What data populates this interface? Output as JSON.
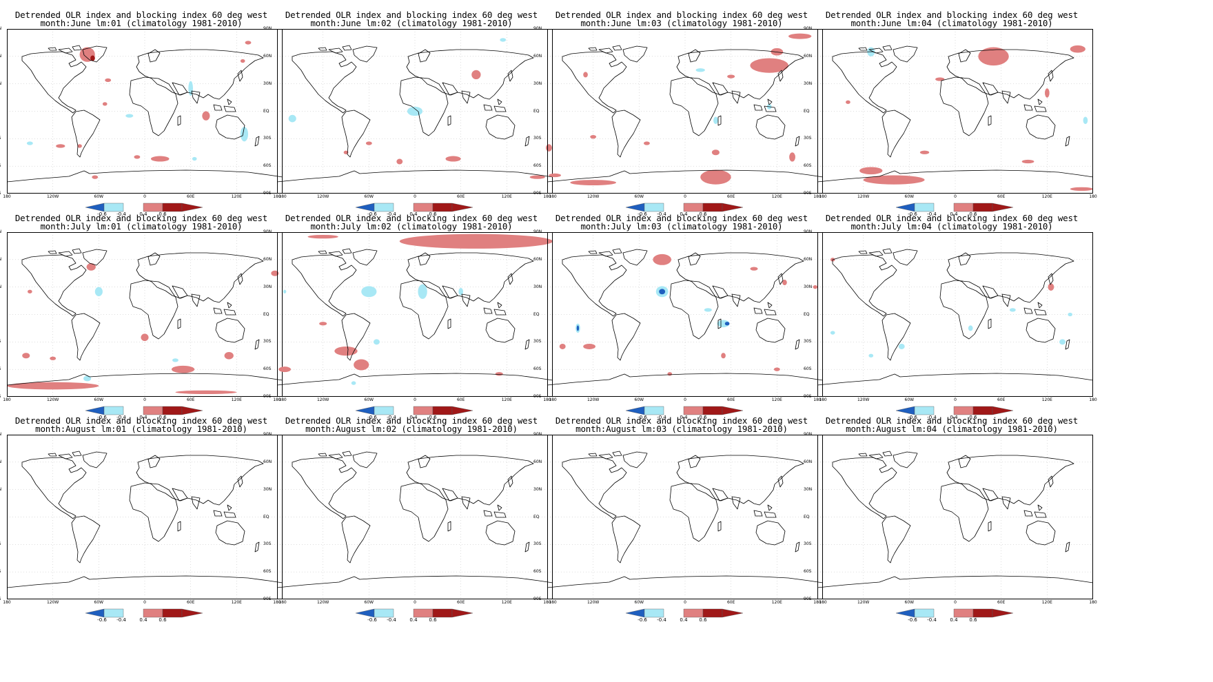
{
  "title_line1": "Detrended OLR index and blocking index 60 deg west",
  "panels": [
    {
      "month": "June",
      "lm": "01",
      "subtitle": "month:June lm:01 (climatology 1981-2010)"
    },
    {
      "month": "June",
      "lm": "02",
      "subtitle": "month:June lm:02 (climatology 1981-2010)"
    },
    {
      "month": "June",
      "lm": "03",
      "subtitle": "month:June lm:03 (climatology 1981-2010)"
    },
    {
      "month": "June",
      "lm": "04",
      "subtitle": "month:June lm:04 (climatology 1981-2010)"
    },
    {
      "month": "July",
      "lm": "01",
      "subtitle": "month:July lm:01 (climatology 1981-2010)"
    },
    {
      "month": "July",
      "lm": "02",
      "subtitle": "month:July lm:02 (climatology 1981-2010)"
    },
    {
      "month": "July",
      "lm": "03",
      "subtitle": "month:July lm:03 (climatology 1981-2010)"
    },
    {
      "month": "July",
      "lm": "04",
      "subtitle": "month:July lm:04 (climatology 1981-2010)"
    },
    {
      "month": "August",
      "lm": "01",
      "subtitle": "month:August lm:01 (climatology 1981-2010)"
    },
    {
      "month": "August",
      "lm": "02",
      "subtitle": "month:August lm:02 (climatology 1981-2010)"
    },
    {
      "month": "August",
      "lm": "03",
      "subtitle": "month:August lm:03 (climatology 1981-2010)"
    },
    {
      "month": "August",
      "lm": "04",
      "subtitle": "month:August lm:04 (climatology 1981-2010)"
    }
  ],
  "lat_labels": [
    "90N",
    "60N",
    "30N",
    "EQ",
    "30S",
    "60S",
    "90S"
  ],
  "lon_labels": [
    "180",
    "120W",
    "60W",
    "0",
    "60E",
    "120E",
    "180"
  ],
  "colorbar": {
    "labels": [
      "-0.6",
      "-0.4",
      "0.4",
      "0.6"
    ],
    "colors": {
      "strong_negative": "#1f5fbf",
      "negative": "#a8e8f5",
      "positive": "#e08080",
      "strong_positive": "#a01818"
    }
  },
  "anomaly_patches": [
    [
      {
        "lon": -75,
        "lat": 62,
        "rx": 10,
        "ry": 8,
        "s": "p"
      },
      {
        "lon": -68,
        "lat": 58,
        "rx": 3,
        "ry": 3,
        "s": "P"
      },
      {
        "lon": -48,
        "lat": 34,
        "rx": 4,
        "ry": 2,
        "s": "p"
      },
      {
        "lon": -52,
        "lat": 8,
        "rx": 3,
        "ry": 2,
        "s": "p"
      },
      {
        "lon": -20,
        "lat": -5,
        "rx": 5,
        "ry": 2,
        "s": "n"
      },
      {
        "lon": -150,
        "lat": -35,
        "rx": 4,
        "ry": 2,
        "s": "n"
      },
      {
        "lon": -110,
        "lat": -38,
        "rx": 6,
        "ry": 2,
        "s": "p"
      },
      {
        "lon": -85,
        "lat": -38,
        "rx": 3,
        "ry": 2,
        "s": "p"
      },
      {
        "lon": 20,
        "lat": -52,
        "rx": 12,
        "ry": 3,
        "s": "p"
      },
      {
        "lon": -10,
        "lat": -50,
        "rx": 4,
        "ry": 2,
        "s": "p"
      },
      {
        "lon": 80,
        "lat": -5,
        "rx": 5,
        "ry": 5,
        "s": "p"
      },
      {
        "lon": 60,
        "lat": 25,
        "rx": 3,
        "ry": 8,
        "s": "n"
      },
      {
        "lon": 130,
        "lat": -25,
        "rx": 5,
        "ry": 8,
        "s": "n"
      },
      {
        "lon": -65,
        "lat": -72,
        "rx": 4,
        "ry": 2,
        "s": "p"
      },
      {
        "lon": 65,
        "lat": -52,
        "rx": 3,
        "ry": 2,
        "s": "n"
      },
      {
        "lon": 135,
        "lat": 75,
        "rx": 4,
        "ry": 2,
        "s": "p"
      },
      {
        "lon": 128,
        "lat": 55,
        "rx": 3,
        "ry": 2,
        "s": "p"
      }
    ],
    [
      {
        "lon": -160,
        "lat": -8,
        "rx": 5,
        "ry": 4,
        "s": "n"
      },
      {
        "lon": 0,
        "lat": 0,
        "rx": 10,
        "ry": 5,
        "s": "n"
      },
      {
        "lon": 80,
        "lat": 40,
        "rx": 6,
        "ry": 5,
        "s": "p"
      },
      {
        "lon": -60,
        "lat": -35,
        "rx": 4,
        "ry": 2,
        "s": "p"
      },
      {
        "lon": -20,
        "lat": -55,
        "rx": 4,
        "ry": 3,
        "s": "p"
      },
      {
        "lon": 50,
        "lat": -52,
        "rx": 10,
        "ry": 3,
        "s": "p"
      },
      {
        "lon": 115,
        "lat": 78,
        "rx": 4,
        "ry": 2,
        "s": "n"
      },
      {
        "lon": 175,
        "lat": -40,
        "rx": 4,
        "ry": 4,
        "s": "p"
      },
      {
        "lon": 160,
        "lat": -72,
        "rx": 10,
        "ry": 2,
        "s": "p"
      },
      {
        "lon": -90,
        "lat": -45,
        "rx": 3,
        "ry": 2,
        "s": "p"
      }
    ],
    [
      {
        "lon": 110,
        "lat": 50,
        "rx": 25,
        "ry": 8,
        "s": "p"
      },
      {
        "lon": 150,
        "lat": 82,
        "rx": 15,
        "ry": 3,
        "s": "p"
      },
      {
        "lon": 120,
        "lat": 65,
        "rx": 8,
        "ry": 4,
        "s": "p"
      },
      {
        "lon": 60,
        "lat": 38,
        "rx": 5,
        "ry": 2,
        "s": "p"
      },
      {
        "lon": 20,
        "lat": 45,
        "rx": 6,
        "ry": 2,
        "s": "n"
      },
      {
        "lon": -130,
        "lat": 40,
        "rx": 3,
        "ry": 3,
        "s": "p"
      },
      {
        "lon": -120,
        "lat": -28,
        "rx": 4,
        "ry": 2,
        "s": "p"
      },
      {
        "lon": -50,
        "lat": -35,
        "rx": 4,
        "ry": 2,
        "s": "p"
      },
      {
        "lon": 40,
        "lat": -72,
        "rx": 20,
        "ry": 8,
        "s": "p"
      },
      {
        "lon": -120,
        "lat": -78,
        "rx": 30,
        "ry": 3,
        "s": "p"
      },
      {
        "lon": -170,
        "lat": -70,
        "rx": 8,
        "ry": 2,
        "s": "p"
      },
      {
        "lon": 140,
        "lat": -50,
        "rx": 4,
        "ry": 5,
        "s": "p"
      },
      {
        "lon": 40,
        "lat": -45,
        "rx": 5,
        "ry": 3,
        "s": "p"
      },
      {
        "lon": 40,
        "lat": -10,
        "rx": 3,
        "ry": 4,
        "s": "n"
      },
      {
        "lon": 110,
        "lat": 5,
        "rx": 3,
        "ry": 3,
        "s": "n"
      }
    ],
    [
      {
        "lon": 50,
        "lat": 60,
        "rx": 20,
        "ry": 10,
        "s": "p"
      },
      {
        "lon": 160,
        "lat": 68,
        "rx": 10,
        "ry": 4,
        "s": "p"
      },
      {
        "lon": -110,
        "lat": 65,
        "rx": 5,
        "ry": 5,
        "s": "n"
      },
      {
        "lon": -80,
        "lat": -75,
        "rx": 40,
        "ry": 5,
        "s": "p"
      },
      {
        "lon": -110,
        "lat": -65,
        "rx": 15,
        "ry": 4,
        "s": "p"
      },
      {
        "lon": -40,
        "lat": -45,
        "rx": 6,
        "ry": 2,
        "s": "p"
      },
      {
        "lon": 165,
        "lat": -85,
        "rx": 15,
        "ry": 2,
        "s": "p"
      },
      {
        "lon": 120,
        "lat": 20,
        "rx": 3,
        "ry": 5,
        "s": "p"
      },
      {
        "lon": -20,
        "lat": 35,
        "rx": 6,
        "ry": 2,
        "s": "p"
      },
      {
        "lon": -140,
        "lat": 10,
        "rx": 3,
        "ry": 2,
        "s": "p"
      },
      {
        "lon": 170,
        "lat": -10,
        "rx": 3,
        "ry": 4,
        "s": "n"
      },
      {
        "lon": 95,
        "lat": -55,
        "rx": 8,
        "ry": 2,
        "s": "p"
      }
    ],
    [
      {
        "lon": -70,
        "lat": 52,
        "rx": 6,
        "ry": 4,
        "s": "p"
      },
      {
        "lon": -60,
        "lat": 25,
        "rx": 5,
        "ry": 5,
        "s": "n"
      },
      {
        "lon": -120,
        "lat": -78,
        "rx": 60,
        "ry": 4,
        "s": "p"
      },
      {
        "lon": 80,
        "lat": -85,
        "rx": 40,
        "ry": 2,
        "s": "p"
      },
      {
        "lon": 0,
        "lat": -25,
        "rx": 5,
        "ry": 4,
        "s": "p"
      },
      {
        "lon": 50,
        "lat": -60,
        "rx": 15,
        "ry": 4,
        "s": "p"
      },
      {
        "lon": 110,
        "lat": -45,
        "rx": 6,
        "ry": 4,
        "s": "p"
      },
      {
        "lon": -155,
        "lat": -45,
        "rx": 5,
        "ry": 3,
        "s": "p"
      },
      {
        "lon": -120,
        "lat": -48,
        "rx": 4,
        "ry": 2,
        "s": "p"
      },
      {
        "lon": 170,
        "lat": 45,
        "rx": 5,
        "ry": 3,
        "s": "p"
      },
      {
        "lon": -150,
        "lat": 25,
        "rx": 3,
        "ry": 2,
        "s": "p"
      },
      {
        "lon": 40,
        "lat": -50,
        "rx": 4,
        "ry": 2,
        "s": "n"
      },
      {
        "lon": -75,
        "lat": -70,
        "rx": 5,
        "ry": 3,
        "s": "n"
      }
    ],
    [
      {
        "lon": 80,
        "lat": 80,
        "rx": 100,
        "ry": 8,
        "s": "p"
      },
      {
        "lon": -120,
        "lat": 85,
        "rx": 20,
        "ry": 2,
        "s": "p"
      },
      {
        "lon": -60,
        "lat": 25,
        "rx": 10,
        "ry": 6,
        "s": "n"
      },
      {
        "lon": 10,
        "lat": 25,
        "rx": 6,
        "ry": 8,
        "s": "n"
      },
      {
        "lon": -90,
        "lat": -40,
        "rx": 15,
        "ry": 5,
        "s": "p"
      },
      {
        "lon": -70,
        "lat": -55,
        "rx": 10,
        "ry": 6,
        "s": "p"
      },
      {
        "lon": -120,
        "lat": -10,
        "rx": 5,
        "ry": 2,
        "s": "p"
      },
      {
        "lon": -50,
        "lat": -30,
        "rx": 4,
        "ry": 3,
        "s": "n"
      },
      {
        "lon": 110,
        "lat": -65,
        "rx": 5,
        "ry": 2,
        "s": "p"
      },
      {
        "lon": -170,
        "lat": -60,
        "rx": 8,
        "ry": 3,
        "s": "p"
      },
      {
        "lon": -170,
        "lat": 25,
        "rx": 2,
        "ry": 2,
        "s": "n"
      },
      {
        "lon": 60,
        "lat": 25,
        "rx": 3,
        "ry": 4,
        "s": "n"
      },
      {
        "lon": -80,
        "lat": -75,
        "rx": 3,
        "ry": 2,
        "s": "n"
      }
    ],
    [
      {
        "lon": -30,
        "lat": 60,
        "rx": 12,
        "ry": 6,
        "s": "p"
      },
      {
        "lon": -30,
        "lat": 25,
        "rx": 8,
        "ry": 6,
        "s": "n"
      },
      {
        "lon": -30,
        "lat": 25,
        "rx": 4,
        "ry": 3,
        "s": "N"
      },
      {
        "lon": -140,
        "lat": -15,
        "rx": 3,
        "ry": 5,
        "s": "n"
      },
      {
        "lon": -140,
        "lat": -15,
        "rx": 1.5,
        "ry": 3,
        "s": "N"
      },
      {
        "lon": 50,
        "lat": -10,
        "rx": 8,
        "ry": 4,
        "s": "n"
      },
      {
        "lon": 55,
        "lat": -10,
        "rx": 3,
        "ry": 2,
        "s": "N"
      },
      {
        "lon": 30,
        "lat": 5,
        "rx": 5,
        "ry": 2,
        "s": "n"
      },
      {
        "lon": -125,
        "lat": -35,
        "rx": 8,
        "ry": 3,
        "s": "p"
      },
      {
        "lon": 50,
        "lat": -45,
        "rx": 3,
        "ry": 3,
        "s": "p"
      },
      {
        "lon": 120,
        "lat": -60,
        "rx": 4,
        "ry": 2,
        "s": "p"
      },
      {
        "lon": 90,
        "lat": 50,
        "rx": 5,
        "ry": 2,
        "s": "p"
      },
      {
        "lon": 130,
        "lat": 35,
        "rx": 3,
        "ry": 3,
        "s": "p"
      },
      {
        "lon": -20,
        "lat": -65,
        "rx": 3,
        "ry": 2,
        "s": "p"
      },
      {
        "lon": 170,
        "lat": 30,
        "rx": 3,
        "ry": 2,
        "s": "p"
      },
      {
        "lon": -160,
        "lat": -35,
        "rx": 4,
        "ry": 3,
        "s": "p"
      }
    ],
    [
      {
        "lon": -160,
        "lat": 60,
        "rx": 3,
        "ry": 2,
        "s": "p"
      },
      {
        "lon": 125,
        "lat": 30,
        "rx": 4,
        "ry": 4,
        "s": "p"
      },
      {
        "lon": 150,
        "lat": 0,
        "rx": 3,
        "ry": 2,
        "s": "n"
      },
      {
        "lon": 75,
        "lat": 5,
        "rx": 4,
        "ry": 2,
        "s": "n"
      },
      {
        "lon": -160,
        "lat": -20,
        "rx": 3,
        "ry": 2,
        "s": "n"
      },
      {
        "lon": -70,
        "lat": -35,
        "rx": 4,
        "ry": 3,
        "s": "n"
      },
      {
        "lon": 20,
        "lat": -15,
        "rx": 3,
        "ry": 3,
        "s": "n"
      },
      {
        "lon": -110,
        "lat": -45,
        "rx": 3,
        "ry": 2,
        "s": "n"
      },
      {
        "lon": 140,
        "lat": -30,
        "rx": 4,
        "ry": 3,
        "s": "n"
      }
    ],
    [],
    [],
    [],
    []
  ]
}
